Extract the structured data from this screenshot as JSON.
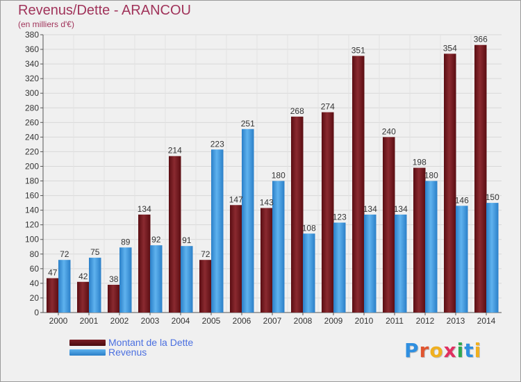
{
  "header": {
    "title": "Revenus/Dette - ARANCOU",
    "subtitle": "(en milliers d'€)"
  },
  "logo": {
    "text": "Proxiti",
    "letters": [
      "P",
      "r",
      "o",
      "x",
      "i",
      "t",
      "i"
    ],
    "colors": [
      "#2f8fe0",
      "#e0552f",
      "#f0b020",
      "#e03060",
      "#2fa84f",
      "#2f8fe0",
      "#f0b020"
    ]
  },
  "legend": {
    "items": [
      {
        "label": "Montant de la Dette",
        "color": "#7a1e24"
      },
      {
        "label": "Revenus",
        "color": "#3f9fe6"
      }
    ]
  },
  "chart_data": {
    "type": "bar",
    "categories": [
      "2000",
      "2001",
      "2002",
      "2003",
      "2004",
      "2005",
      "2006",
      "2007",
      "2008",
      "2009",
      "2010",
      "2011",
      "2012",
      "2013",
      "2014"
    ],
    "series": [
      {
        "name": "Montant de la Dette",
        "color": "#7a1e24",
        "values": [
          47,
          42,
          38,
          134,
          214,
          72,
          147,
          143,
          268,
          274,
          351,
          240,
          198,
          354,
          366
        ]
      },
      {
        "name": "Revenus",
        "color": "#3f9fe6",
        "values": [
          72,
          75,
          89,
          92,
          91,
          223,
          251,
          180,
          108,
          123,
          134,
          134,
          180,
          146,
          150
        ]
      }
    ],
    "title": "Revenus/Dette - ARANCOU",
    "subtitle": "(en milliers d'€)",
    "ylim": [
      0,
      380
    ],
    "yticks": [
      0,
      20,
      40,
      60,
      80,
      100,
      120,
      140,
      160,
      180,
      200,
      220,
      240,
      260,
      280,
      300,
      320,
      340,
      360,
      380
    ],
    "grid": true,
    "legend_position": "bottom-left"
  }
}
